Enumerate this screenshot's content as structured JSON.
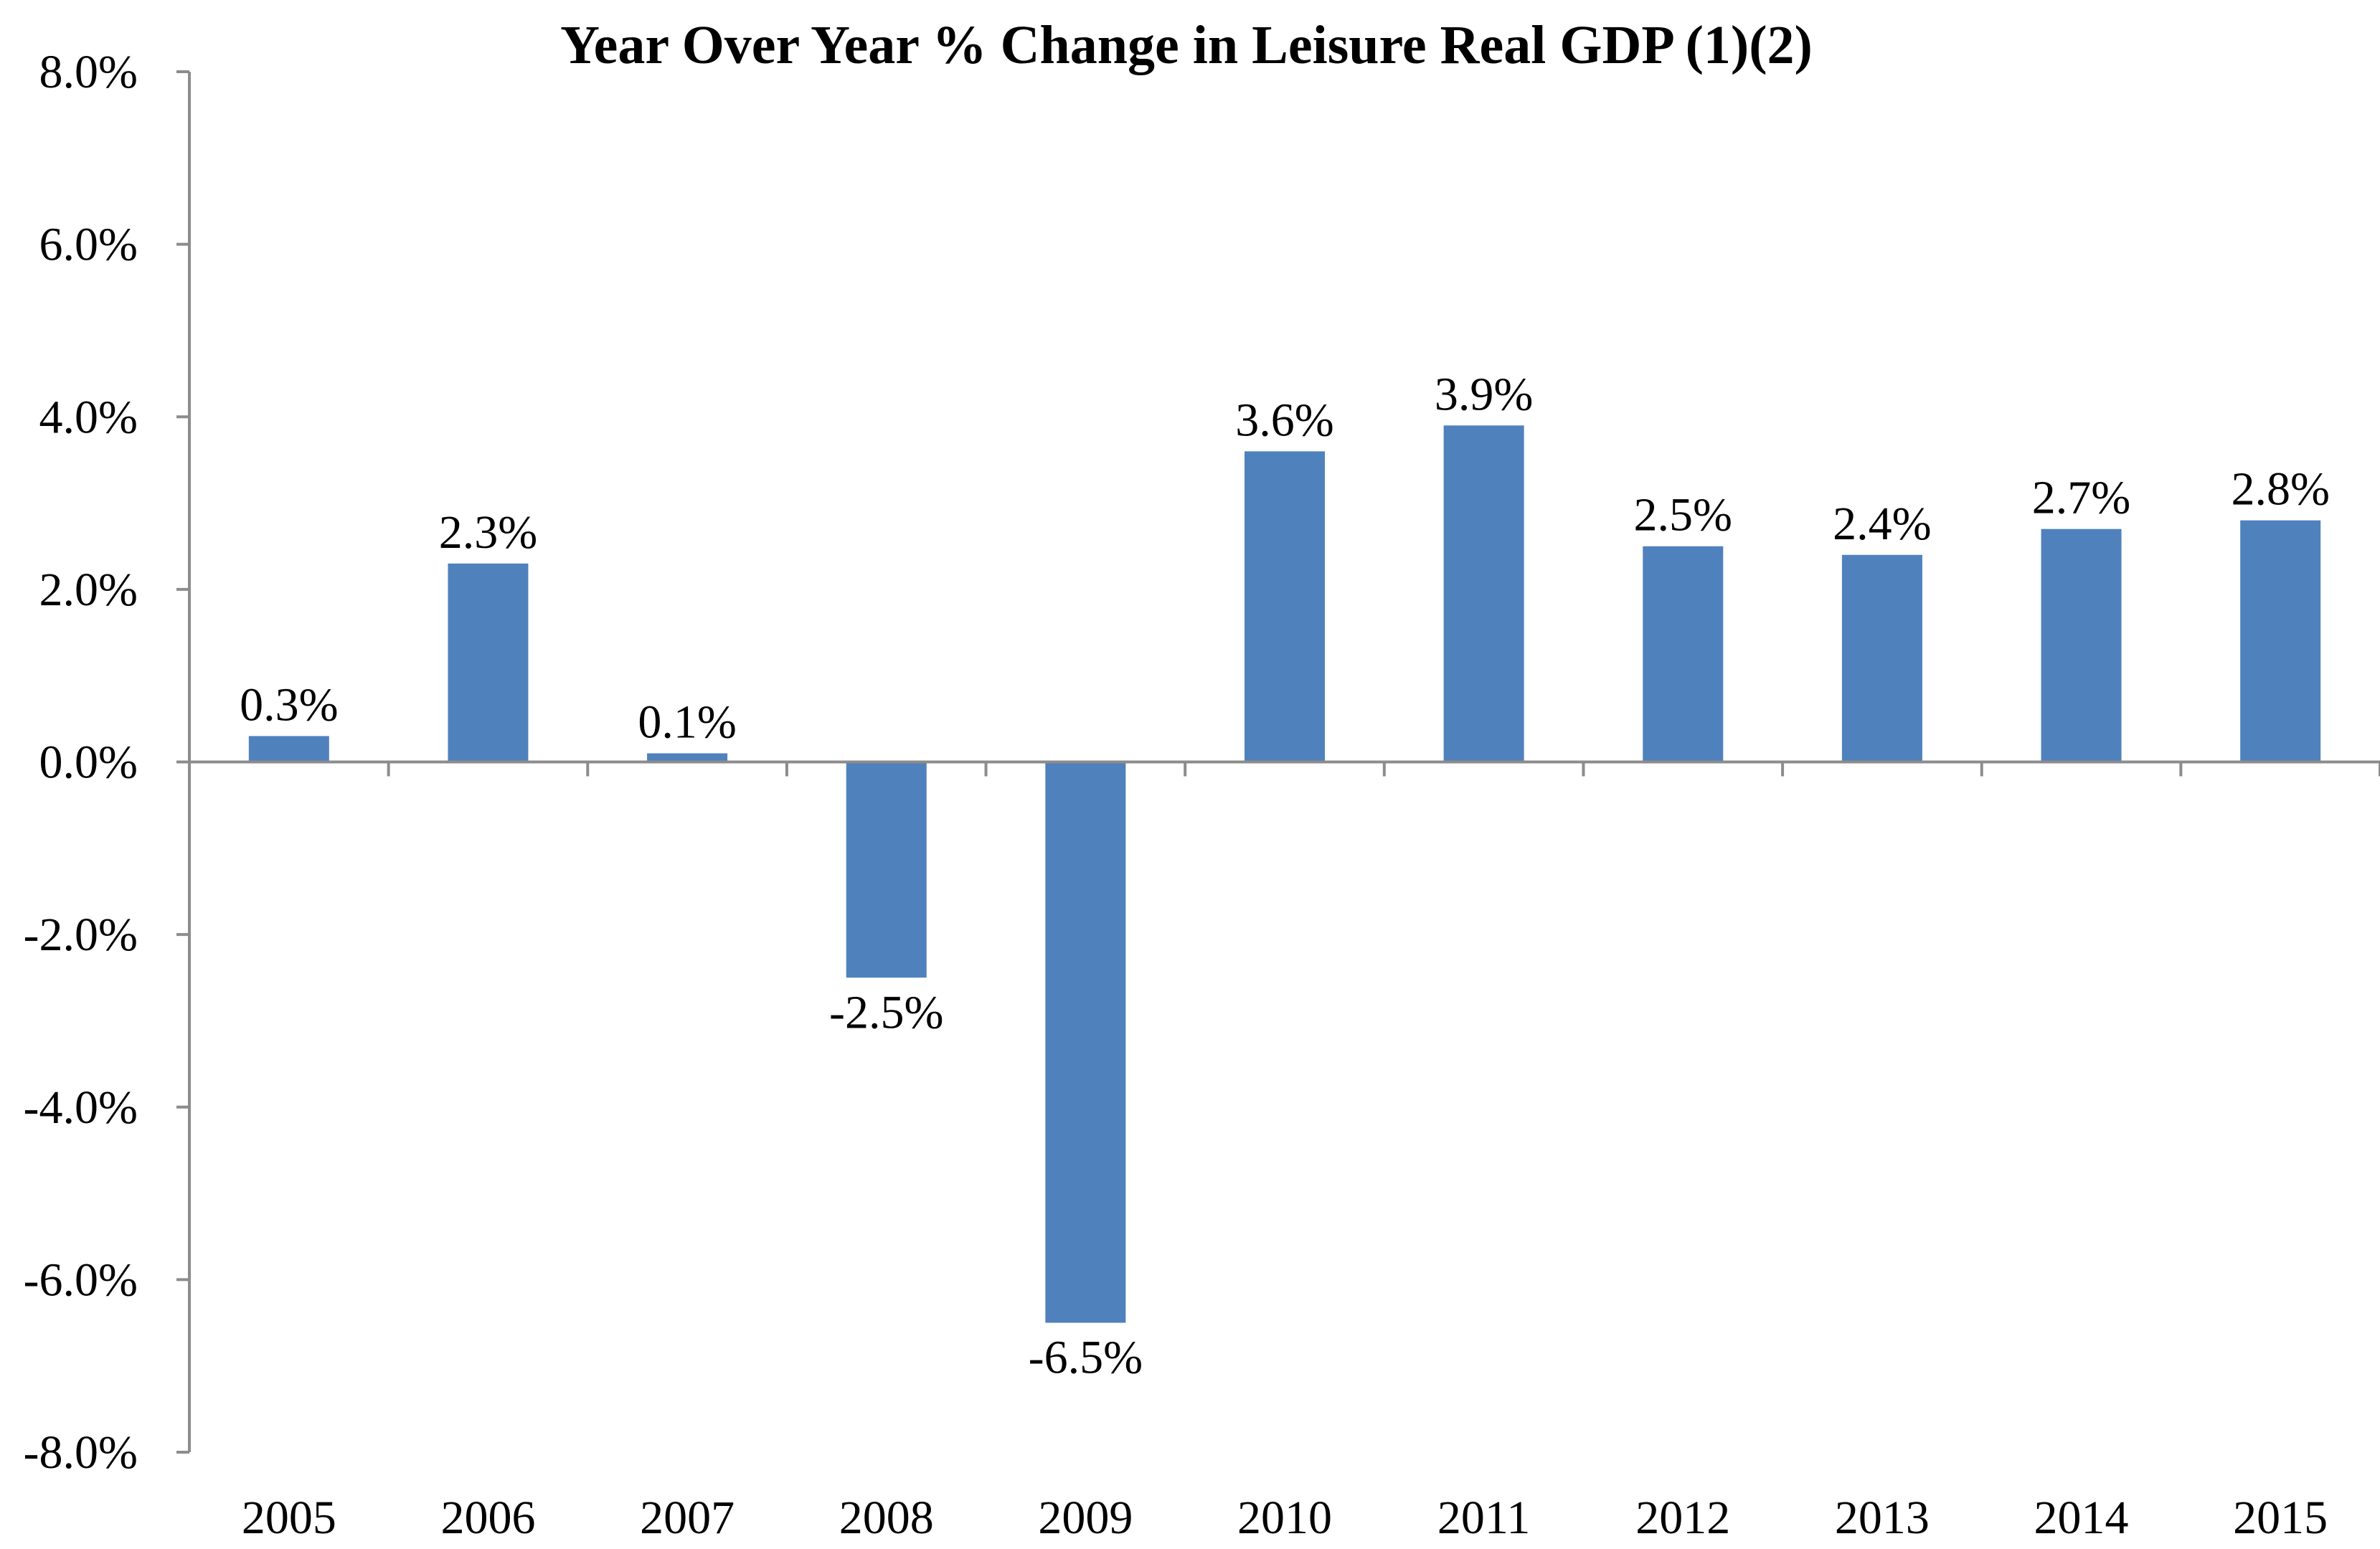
{
  "chart_data": {
    "type": "bar",
    "title": "Year Over Year % Change in Leisure Real GDP (1)(2)",
    "xlabel": "",
    "ylabel": "",
    "categories": [
      "2005",
      "2006",
      "2007",
      "2008",
      "2009",
      "2010",
      "2011",
      "2012",
      "2013",
      "2014",
      "2015"
    ],
    "values": [
      0.3,
      2.3,
      0.1,
      -2.5,
      -6.5,
      3.6,
      3.9,
      2.5,
      2.4,
      2.7,
      2.8
    ],
    "data_labels": [
      "0.3%",
      "2.3%",
      "0.1%",
      "-2.5%",
      "-6.5%",
      "3.6%",
      "3.9%",
      "2.5%",
      "2.4%",
      "2.7%",
      "2.8%"
    ],
    "ylim": [
      -8,
      8
    ],
    "yticks": [
      8,
      6,
      4,
      2,
      0,
      -2,
      -4,
      -6,
      -8
    ],
    "ytick_labels": [
      "8.0%",
      "6.0%",
      "4.0%",
      "2.0%",
      "0.0%",
      "-2.0%",
      "-4.0%",
      "-6.0%",
      "-8.0%"
    ],
    "grid": false,
    "legend": "none",
    "bar_color": "#4f81bd",
    "axis_color": "#8c8c8c"
  }
}
